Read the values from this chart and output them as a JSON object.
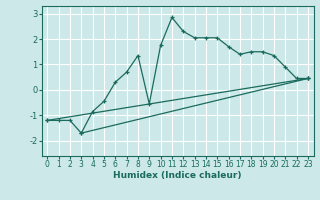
{
  "xlabel": "Humidex (Indice chaleur)",
  "bg_color": "#cce8e8",
  "grid_color": "#ffffff",
  "line_color": "#1a6b5e",
  "xlim": [
    -0.5,
    23.5
  ],
  "ylim": [
    -2.6,
    3.3
  ],
  "yticks": [
    -2,
    -1,
    0,
    1,
    2,
    3
  ],
  "xticks": [
    0,
    1,
    2,
    3,
    4,
    5,
    6,
    7,
    8,
    9,
    10,
    11,
    12,
    13,
    14,
    15,
    16,
    17,
    18,
    19,
    20,
    21,
    22,
    23
  ],
  "series1_x": [
    0,
    1,
    2,
    3,
    4,
    5,
    6,
    7,
    8,
    9,
    10,
    11,
    12,
    13,
    14,
    15,
    16,
    17,
    18,
    19,
    20,
    21,
    22,
    23
  ],
  "series1_y": [
    -1.2,
    -1.2,
    -1.2,
    -1.7,
    -0.85,
    -0.45,
    0.3,
    0.7,
    1.35,
    -0.55,
    1.75,
    2.85,
    2.3,
    2.05,
    2.05,
    2.05,
    1.7,
    1.4,
    1.5,
    1.5,
    1.35,
    0.9,
    0.45,
    0.45
  ],
  "series2_x": [
    0,
    23
  ],
  "series2_y": [
    -1.2,
    0.45
  ],
  "series3_x": [
    3,
    23
  ],
  "series3_y": [
    -1.7,
    0.45
  ],
  "tick_fontsize": 5.5,
  "xlabel_fontsize": 6.5
}
